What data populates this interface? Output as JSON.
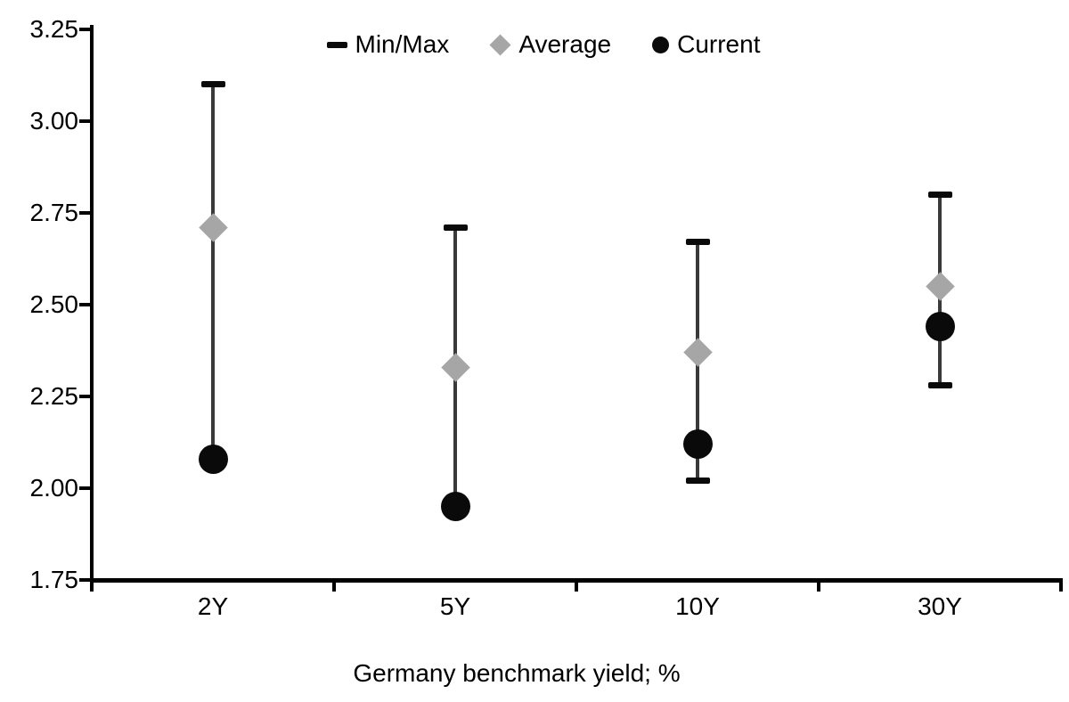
{
  "chart_data": {
    "type": "range-dot (min/max range bars with average and current markers)",
    "title": "",
    "xlabel": "Germany benchmark yield; %",
    "ylabel": "",
    "categories": [
      "2Y",
      "5Y",
      "10Y",
      "30Y"
    ],
    "series": [
      {
        "name": "Max",
        "values": [
          3.1,
          2.71,
          2.67,
          2.8
        ]
      },
      {
        "name": "Min",
        "values": [
          2.08,
          1.95,
          2.02,
          2.28
        ]
      },
      {
        "name": "Average",
        "values": [
          2.71,
          2.33,
          2.37,
          2.55
        ]
      },
      {
        "name": "Current",
        "values": [
          2.08,
          1.95,
          2.12,
          2.44
        ]
      }
    ],
    "ylim": [
      1.75,
      3.25
    ],
    "y_ticks": [
      3.25,
      3.0,
      2.75,
      2.5,
      2.25,
      2.0,
      1.75
    ],
    "y_tick_labels": [
      "3.25",
      "3.00",
      "2.75",
      "2.50",
      "2.25",
      "2.00",
      "1.75"
    ],
    "grid": false,
    "legend": {
      "position": "top",
      "items": [
        {
          "label": "Min/Max",
          "marker": "dash"
        },
        {
          "label": "Average",
          "marker": "diamond"
        },
        {
          "label": "Current",
          "marker": "circle"
        }
      ]
    },
    "colors": {
      "minmax_caps": "#0a0a0a",
      "range_line": "#3a3a3a",
      "average_marker": "#a6a6a6",
      "current_marker": "#0a0a0a",
      "text": "#000000",
      "background": "#ffffff"
    }
  }
}
